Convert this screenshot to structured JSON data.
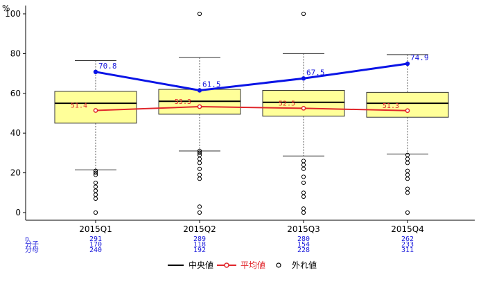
{
  "chart_data": {
    "type": "box",
    "ylabel": "%",
    "ylim": [
      0,
      100
    ],
    "yticks": [
      0,
      20,
      40,
      60,
      80,
      100
    ],
    "categories": [
      "2015Q1",
      "2015Q2",
      "2015Q3",
      "2015Q4"
    ],
    "boxes": [
      {
        "whisker_low": 21.5,
        "q1": 45.0,
        "median": 55.0,
        "q3": 61.0,
        "whisker_high": 76.5,
        "outliers": [
          0,
          7,
          9,
          11,
          13,
          15,
          19,
          20,
          21
        ]
      },
      {
        "whisker_low": 31.0,
        "q1": 49.5,
        "median": 56.0,
        "q3": 62.0,
        "whisker_high": 78.0,
        "outliers": [
          0,
          3,
          17,
          19,
          22,
          25,
          27,
          29,
          30,
          31,
          100
        ]
      },
      {
        "whisker_low": 28.5,
        "q1": 48.5,
        "median": 55.5,
        "q3": 61.5,
        "whisker_high": 80.0,
        "outliers": [
          0,
          2,
          8,
          10,
          15,
          18,
          22,
          24,
          26,
          100
        ]
      },
      {
        "whisker_low": 29.5,
        "q1": 48.0,
        "median": 55.0,
        "q3": 60.5,
        "whisker_high": 79.5,
        "outliers": [
          0,
          10,
          12,
          17,
          19,
          21,
          25,
          27,
          29
        ]
      }
    ],
    "series": [
      {
        "name": "",
        "values": [
          70.8,
          61.5,
          67.5,
          74.9
        ],
        "labels": [
          "70.8",
          "61.5",
          "67.5",
          "74.9"
        ],
        "color": "#0a14e6"
      },
      {
        "name": "平均値",
        "values": [
          51.4,
          53.3,
          52.5,
          51.3
        ],
        "labels": [
          "51.4",
          "53.3",
          "52.5",
          "51.3"
        ],
        "color": "#e0262b"
      }
    ],
    "stats": {
      "row_labels": [
        "n",
        "分子",
        "分母"
      ],
      "rows": [
        [
          "291",
          "289",
          "280",
          "262"
        ],
        [
          "170",
          "118",
          "154",
          "233"
        ],
        [
          "240",
          "192",
          "228",
          "311"
        ]
      ]
    },
    "legend": {
      "position": "bottom",
      "items": [
        {
          "label": "中央値",
          "kind": "line",
          "color": "#000000"
        },
        {
          "label": "平均値",
          "kind": "line-point",
          "color": "#e0262b"
        },
        {
          "label": "外れ値",
          "kind": "circle",
          "color": "#000000"
        }
      ]
    },
    "colors": {
      "box_fill": "#ffff99",
      "box_stroke": "#333333",
      "whisker": "#555555"
    }
  }
}
